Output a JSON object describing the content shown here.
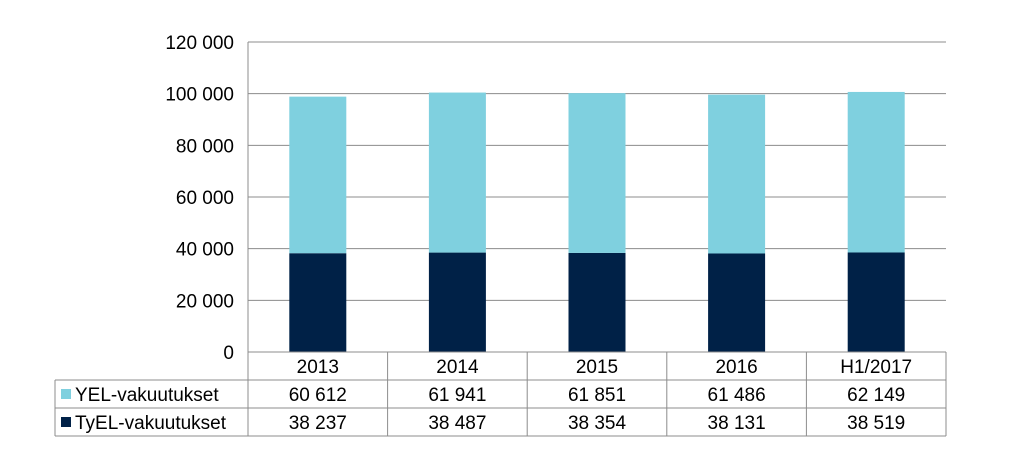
{
  "chart_data": {
    "type": "bar",
    "stacked": true,
    "title": "",
    "xlabel": "",
    "ylabel": "",
    "ylim": [
      0,
      120000
    ],
    "yticks": [
      0,
      20000,
      40000,
      60000,
      80000,
      100000,
      120000
    ],
    "ytick_labels": [
      "0",
      "20 000",
      "40 000",
      "60 000",
      "80 000",
      "100 000",
      "120 000"
    ],
    "grid": true,
    "legend_placement": "data-table-left",
    "categories": [
      "2013",
      "2014",
      "2015",
      "2016",
      "H1/2017"
    ],
    "series": [
      {
        "name": "TyEL-vakuutukset",
        "color": "#002147",
        "values": [
          38237,
          38487,
          38354,
          38131,
          38519
        ],
        "labels": [
          "38 237",
          "38 487",
          "38 354",
          "38 131",
          "38 519"
        ]
      },
      {
        "name": "YEL-vakuutukset",
        "color": "#7fd0df",
        "values": [
          60612,
          61941,
          61851,
          61486,
          62149
        ],
        "labels": [
          "60 612",
          "61 941",
          "61 851",
          "61 486",
          "62 149"
        ]
      }
    ],
    "table_rows_order": [
      "YEL-vakuutukset",
      "TyEL-vakuutukset"
    ]
  }
}
